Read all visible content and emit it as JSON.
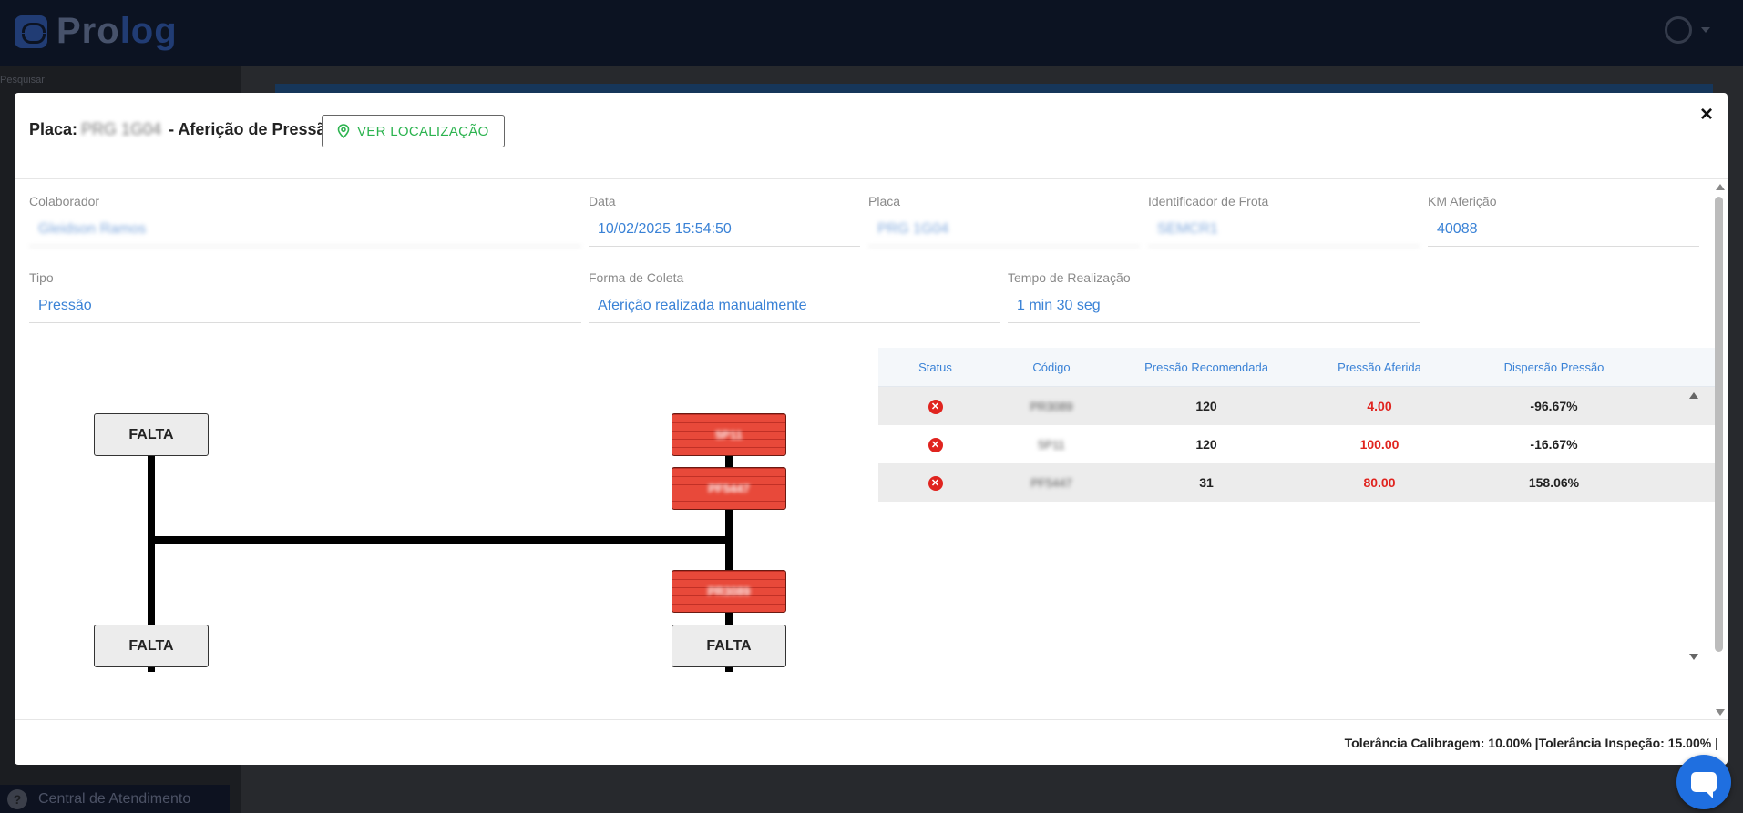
{
  "app": {
    "logo_text_a": "Pro",
    "logo_text_b": "log",
    "sidebar_search": "Pesquisar",
    "help_label": "Central de Atendimento"
  },
  "modal": {
    "title_prefix": "Placa:",
    "title_plate": "PRG 1G04",
    "title_suffix": "- Aferição de Pressão",
    "location_button": "VER LOCALIZAÇÃO",
    "close": "×"
  },
  "fields": {
    "colaborador": {
      "label": "Colaborador",
      "value": "Gleidson Ramos"
    },
    "data": {
      "label": "Data",
      "value": "10/02/2025 15:54:50"
    },
    "placa": {
      "label": "Placa",
      "value": "PRG 1G04"
    },
    "frota": {
      "label": "Identificador de Frota",
      "value": "SEMCR1"
    },
    "km": {
      "label": "KM Aferição",
      "value": "40088"
    },
    "tipo": {
      "label": "Tipo",
      "value": "Pressão"
    },
    "forma": {
      "label": "Forma de Coleta",
      "value": "Aferição realizada manualmente"
    },
    "tempo": {
      "label": "Tempo de Realização",
      "value": "1 min 30 seg"
    }
  },
  "diagram": {
    "tires": [
      {
        "label": "FALTA",
        "state": "empty"
      },
      {
        "label": "FALTA",
        "state": "empty"
      },
      {
        "label": "5P11",
        "state": "alert"
      },
      {
        "label": "PF5447",
        "state": "alert"
      },
      {
        "label": "PR3089",
        "state": "alert"
      },
      {
        "label": "FALTA",
        "state": "empty"
      }
    ]
  },
  "table": {
    "headers": [
      "Status",
      "Código",
      "Pressão Recomendada",
      "Pressão Aferida",
      "Dispersão Pressão"
    ],
    "rows": [
      {
        "status": "error",
        "code": "PR3089",
        "recomendada": "120",
        "aferida": "4.00",
        "dispersao": "-96.67%"
      },
      {
        "status": "error",
        "code": "5P11",
        "recomendada": "120",
        "aferida": "100.00",
        "dispersao": "-16.67%"
      },
      {
        "status": "error",
        "code": "PF5447",
        "recomendada": "31",
        "aferida": "80.00",
        "dispersao": "158.06%"
      }
    ]
  },
  "footer": {
    "tolerance": "Tolerância Calibragem: 10.00% |Tolerância Inspeção: 15.00% |"
  },
  "colors": {
    "accent_blue": "#3a82d6",
    "alert_red": "#e0241f",
    "location_green": "#2cb34f"
  }
}
